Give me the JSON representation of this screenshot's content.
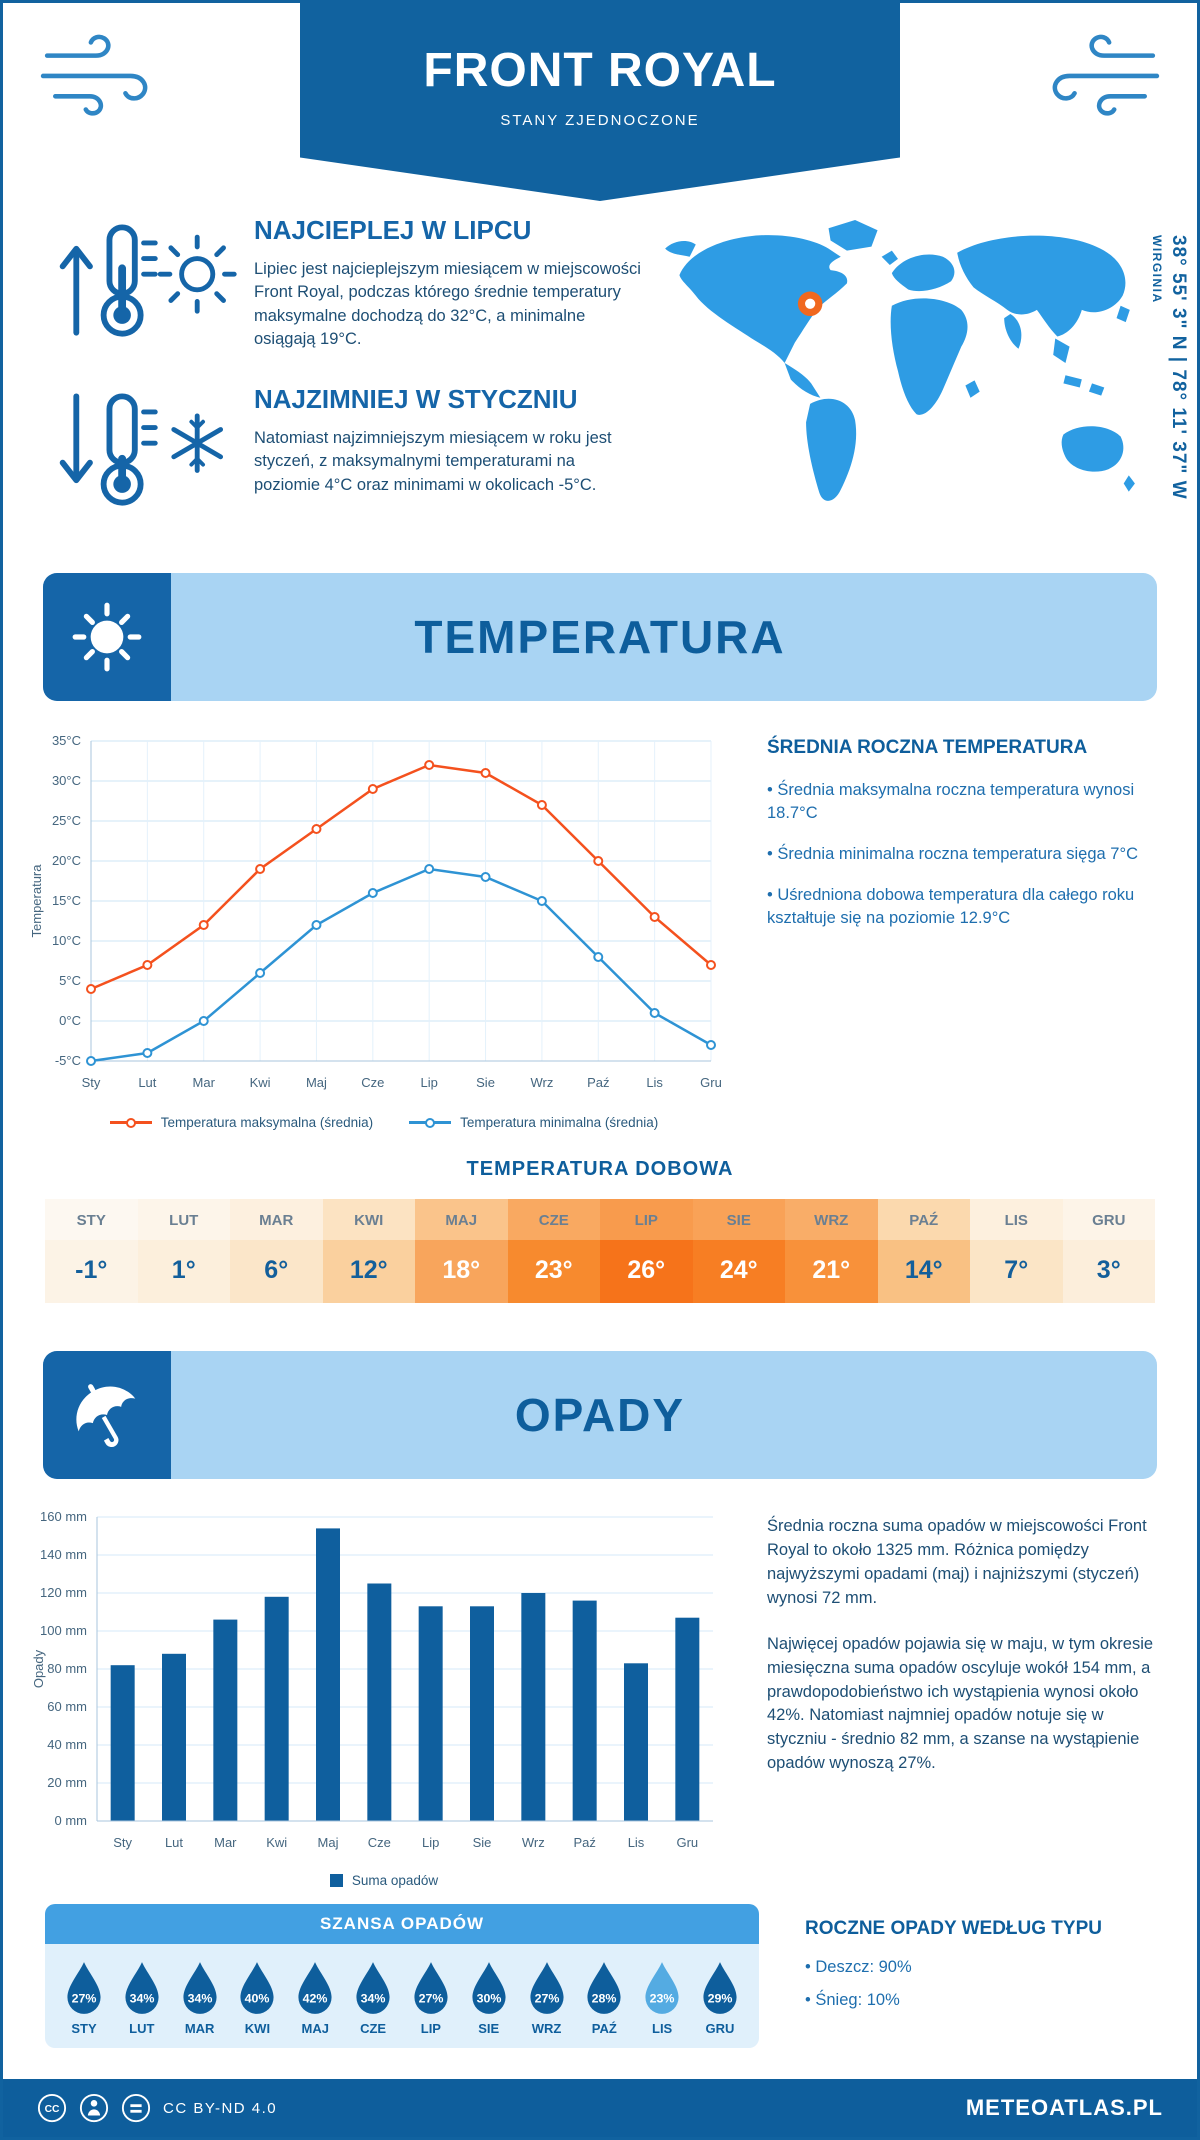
{
  "header": {
    "title": "FRONT ROYAL",
    "subtitle": "STANY ZJEDNOCZONE"
  },
  "location": {
    "coordinates": "38° 55' 3\" N | 78° 11' 37\" W",
    "region": "WIRGINIA"
  },
  "intro": {
    "warmest": {
      "heading": "NAJCIEPLEJ W LIPCU",
      "text": "Lipiec jest najcieplejszym miesiącem w miejscowości Front Royal, podczas którego średnie temperatury maksymalne dochodzą do 32°C, a minimalne osiągają 19°C."
    },
    "coldest": {
      "heading": "NAJZIMNIEJ W STYCZNIU",
      "text": "Natomiast najzimniejszym miesiącem w roku jest styczeń, z maksymalnymi temperaturami na poziomie 4°C oraz minimami w okolicach -5°C."
    }
  },
  "temperature": {
    "section_title": "TEMPERATURA",
    "summary_title": "ŚREDNIA ROCZNA TEMPERATURA",
    "bullets": [
      "Średnia maksymalna roczna temperatura wynosi 18.7°C",
      "Średnia minimalna roczna temperatura sięga 7°C",
      "Uśredniona dobowa temperatura dla całego roku kształtuje się na poziomie 12.9°C"
    ],
    "daily_title": "TEMPERATURA DOBOWA",
    "daily": [
      {
        "month": "STY",
        "value": "-1°",
        "header_bg": "#fdf8f1",
        "value_bg": "#fcf3e6",
        "color": "#135f9b"
      },
      {
        "month": "LUT",
        "value": "1°",
        "header_bg": "#fdf5ea",
        "value_bg": "#fcefdc",
        "color": "#135f9b"
      },
      {
        "month": "MAR",
        "value": "6°",
        "header_bg": "#fdf0df",
        "value_bg": "#fbe6c9",
        "color": "#135f9b"
      },
      {
        "month": "KWI",
        "value": "12°",
        "header_bg": "#fce3c2",
        "value_bg": "#fad09e",
        "color": "#135f9b"
      },
      {
        "month": "MAJ",
        "value": "18°",
        "header_bg": "#fac48b",
        "value_bg": "#f8a55c",
        "color": "#ffffff"
      },
      {
        "month": "CZE",
        "value": "23°",
        "header_bg": "#f9a961",
        "value_bg": "#f78a2e",
        "color": "#ffffff"
      },
      {
        "month": "LIP",
        "value": "26°",
        "header_bg": "#f89b4d",
        "value_bg": "#f6731a",
        "color": "#ffffff"
      },
      {
        "month": "SIE",
        "value": "24°",
        "header_bg": "#f9a257",
        "value_bg": "#f77e23",
        "color": "#ffffff"
      },
      {
        "month": "WRZ",
        "value": "21°",
        "header_bg": "#f9ad68",
        "value_bg": "#f8913a",
        "color": "#ffffff"
      },
      {
        "month": "PAŹ",
        "value": "14°",
        "header_bg": "#fbd9ae",
        "value_bg": "#f9c183",
        "color": "#135f9b"
      },
      {
        "month": "LIS",
        "value": "7°",
        "header_bg": "#fdf0de",
        "value_bg": "#fbe5c6",
        "color": "#135f9b"
      },
      {
        "month": "GRU",
        "value": "3°",
        "header_bg": "#fdf4e8",
        "value_bg": "#fceedb",
        "color": "#135f9b"
      }
    ]
  },
  "precipitation": {
    "section_title": "OPADY",
    "paragraphs": [
      "Średnia roczna suma opadów w miejscowości Front Royal to około 1325 mm. Różnica pomiędzy najwyższymi opadami (maj) i najniższymi (styczeń) wynosi 72 mm.",
      "Najwięcej opadów pojawia się w maju, w tym okresie miesięczna suma opadów oscyluje wokół 154 mm, a prawdopodobieństwo ich wystąpienia wynosi około 42%. Natomiast najmniej opadów notuje się w styczniu - średnio 82 mm, a szanse na wystąpienie opadów wynoszą 27%."
    ],
    "chance_title": "SZANSA OPADÓW",
    "chance": [
      {
        "month": "STY",
        "value": "27%",
        "color": "#0e5e9c"
      },
      {
        "month": "LUT",
        "value": "34%",
        "color": "#0e5e9c"
      },
      {
        "month": "MAR",
        "value": "34%",
        "color": "#0e5e9c"
      },
      {
        "month": "KWI",
        "value": "40%",
        "color": "#0e5e9c"
      },
      {
        "month": "MAJ",
        "value": "42%",
        "color": "#0e5e9c"
      },
      {
        "month": "CZE",
        "value": "34%",
        "color": "#0e5e9c"
      },
      {
        "month": "LIP",
        "value": "27%",
        "color": "#0e5e9c"
      },
      {
        "month": "SIE",
        "value": "30%",
        "color": "#0e5e9c"
      },
      {
        "month": "WRZ",
        "value": "27%",
        "color": "#0e5e9c"
      },
      {
        "month": "PAŹ",
        "value": "28%",
        "color": "#0e5e9c"
      },
      {
        "month": "LIS",
        "value": "23%",
        "color": "#54abe2"
      },
      {
        "month": "GRU",
        "value": "29%",
        "color": "#0e5e9c"
      }
    ],
    "type_title": "ROCZNE OPADY WEDŁUG TYPU",
    "type_bullets": [
      "Deszcz: 90%",
      "Śnieg: 10%"
    ]
  },
  "chart_data": [
    {
      "type": "line",
      "title": "Temperatura",
      "categories": [
        "Sty",
        "Lut",
        "Mar",
        "Kwi",
        "Maj",
        "Cze",
        "Lip",
        "Sie",
        "Wrz",
        "Paź",
        "Lis",
        "Gru"
      ],
      "series": [
        {
          "name": "Temperatura maksymalna (średnia)",
          "color": "#f4511e",
          "values": [
            4,
            7,
            12,
            19,
            24,
            29,
            32,
            31,
            27,
            20,
            13,
            7
          ]
        },
        {
          "name": "Temperatura minimalna (średnia)",
          "color": "#2e93d4",
          "values": [
            -5,
            -4,
            0,
            6,
            12,
            16,
            19,
            18,
            15,
            8,
            1,
            -3
          ]
        }
      ],
      "xlabel": "",
      "ylabel": "Temperatura",
      "ylim": [
        -5,
        35
      ],
      "ytick_step": 5,
      "ytick_suffix": "°C",
      "grid": true,
      "legend_position": "bottom"
    },
    {
      "type": "bar",
      "title": "Suma opadów",
      "categories": [
        "Sty",
        "Lut",
        "Mar",
        "Kwi",
        "Maj",
        "Cze",
        "Lip",
        "Sie",
        "Wrz",
        "Paź",
        "Lis",
        "Gru"
      ],
      "values": [
        82,
        88,
        106,
        118,
        154,
        125,
        113,
        113,
        120,
        116,
        83,
        107
      ],
      "xlabel": "",
      "ylabel": "Opady",
      "ylim": [
        0,
        160
      ],
      "ytick_step": 20,
      "ytick_suffix": " mm",
      "bar_color": "#0f5f9e",
      "legend": "Suma opadów",
      "grid": true,
      "legend_position": "bottom"
    }
  ],
  "icons": {
    "wind": "wind-swirl-icon",
    "warmest": "thermometer-up-sun-icon",
    "coldest": "thermometer-down-snowflake-icon",
    "temperature_section": "sun-icon",
    "precipitation_section": "umbrella-icon",
    "chance": "raindrop-icon",
    "footer": [
      "cc-icon",
      "attribution-person-icon",
      "no-derivatives-icon"
    ]
  },
  "colors": {
    "primary": "#11629f",
    "section_banner_bg": "#a9d4f3",
    "map_blue": "#2e9ce4",
    "marker_orange": "#f0681f",
    "chance_header": "#42a0e2",
    "chance_body": "#e0f0fb"
  },
  "footer": {
    "license": "CC BY-ND 4.0",
    "site": "METEOATLAS.PL"
  }
}
